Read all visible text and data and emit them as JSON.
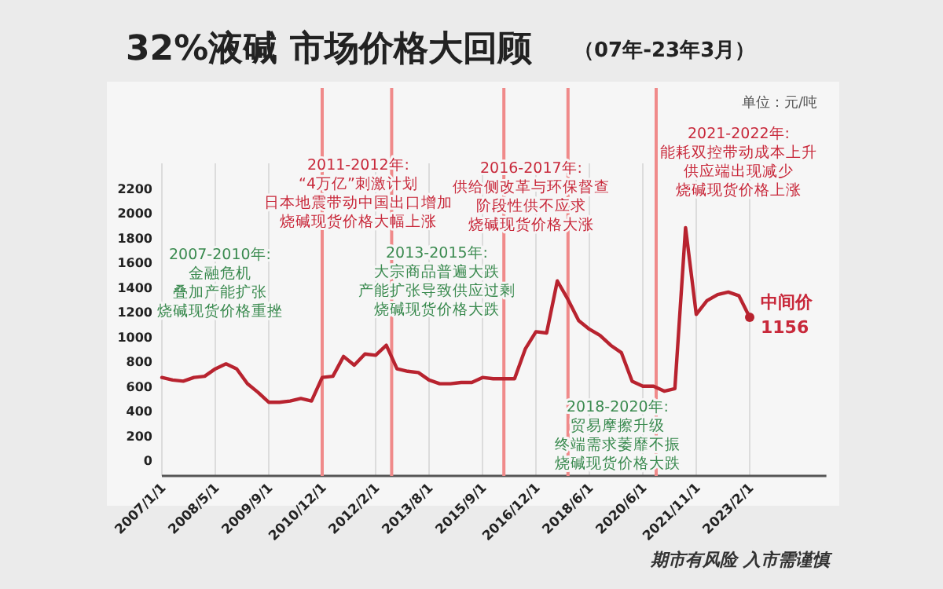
{
  "chart_data": {
    "type": "line",
    "title": "32%液碱 市场价格大回顾",
    "subtitle": "（07年-23年3月）",
    "color": "#b8232f",
    "grid": "x",
    "marker": "none",
    "line_style": "solid",
    "categories": [
      "2007/1/1",
      null,
      null,
      null,
      null,
      "2008/5/1",
      null,
      null,
      null,
      null,
      "2009/9/1",
      null,
      null,
      null,
      null,
      "2010/12/1",
      null,
      null,
      null,
      null,
      "2012/2/1",
      null,
      null,
      null,
      null,
      "2013/8/1",
      null,
      null,
      null,
      null,
      "2015/9/1",
      null,
      null,
      null,
      null,
      "2016/12/1",
      null,
      null,
      null,
      null,
      "2018/6/1",
      null,
      null,
      null,
      null,
      "2020/6/1",
      null,
      null,
      null,
      null,
      "2021/11/1",
      null,
      null,
      null,
      null,
      "2023/2/1",
      null,
      null,
      null,
      null,
      null,
      null
    ],
    "values": [
      670,
      650,
      640,
      670,
      680,
      740,
      780,
      740,
      620,
      550,
      470,
      470,
      480,
      500,
      480,
      670,
      680,
      840,
      770,
      860,
      850,
      930,
      740,
      720,
      710,
      650,
      620,
      620,
      630,
      630,
      670,
      660,
      660,
      660,
      900,
      1040,
      1030,
      1450,
      1300,
      1130,
      1060,
      1010,
      930,
      870,
      640,
      600,
      600,
      560,
      580,
      1880,
      1180,
      1290,
      1340,
      1360,
      1330,
      1156,
      null,
      null,
      null,
      null,
      null,
      null
    ],
    "ylim": [
      -125,
      2400
    ],
    "yticks": [
      0,
      200,
      400,
      600,
      800,
      1000,
      1200,
      1400,
      1600,
      1800,
      2000,
      2200
    ],
    "annotations": [
      "单位：元/吨",
      "2007-2010年:金融危机叠加产能扩张烧碱现货价格重挫",
      "2011-2012年:“4万亿”刺激计划日本地震带动中国出口增加烧碱现货价格大幅上涨",
      "2013-2015年:大宗商品普遍大跌产能扩张导致供应过剩烧碱现货价格大跌",
      "2016-2017年:供给侧改革与环保督查阶段性供不应求烧碱现货价格大涨",
      "2018-2020年:贸易摩擦升级终端需求萎靡不振烧碱现货价格大跌",
      "2021-2022年:能耗双控带动成本上升供应端出现减少烧碱现货价格上涨",
      {
        "text": "中间价\n1156",
        "x": "2023/2/1",
        "y": 1156
      },
      "期市有风险 入市需谨慎"
    ]
  }
}
